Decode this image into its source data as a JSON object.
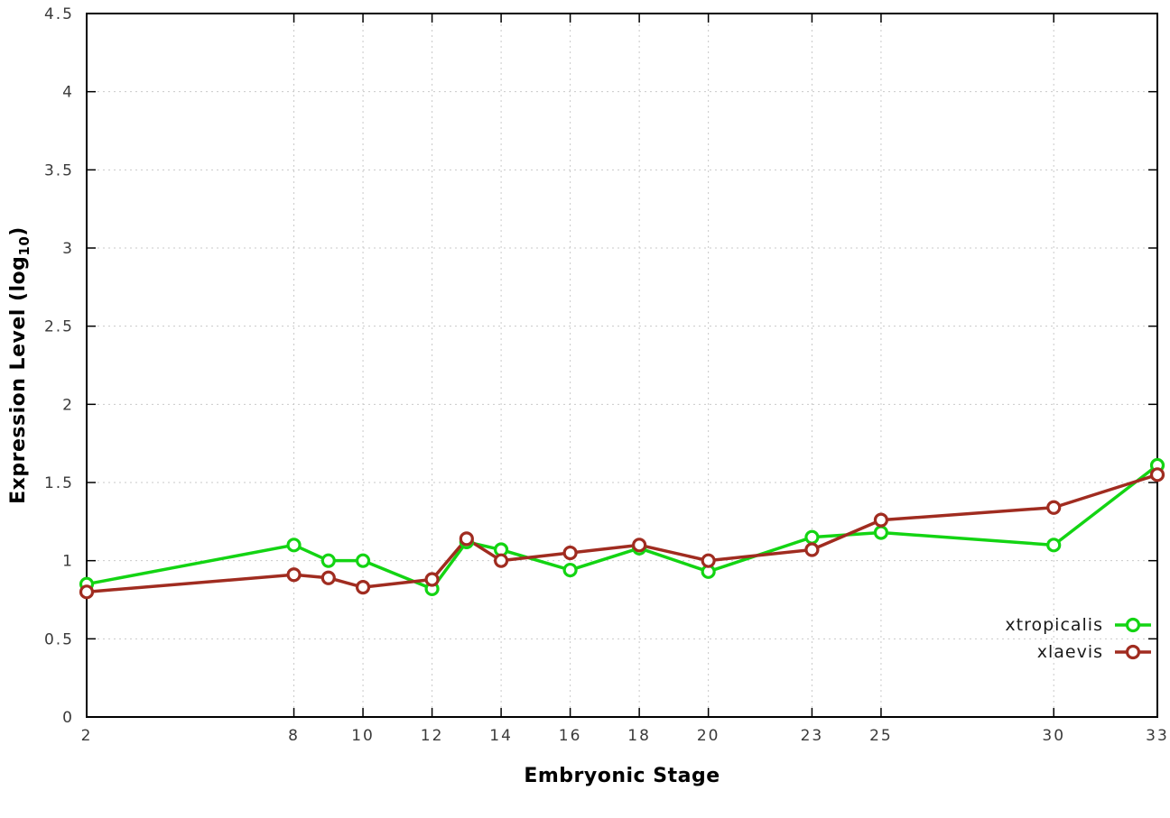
{
  "chart": {
    "ylabel_main": "Expression Level (log",
    "ylabel_sub": "10",
    "ylabel_close": ")",
    "xlabel": "Embryonic Stage"
  },
  "chart_data": {
    "type": "line",
    "title": "",
    "xlabel": "Embryonic Stage",
    "ylabel": "Expression Level (log10)",
    "x": [
      2,
      8,
      9,
      10,
      12,
      13,
      14,
      16,
      18,
      20,
      23,
      25,
      30,
      33
    ],
    "series": [
      {
        "name": "xtropicalis",
        "color": "#13d413",
        "values": [
          0.85,
          1.1,
          1.0,
          1.0,
          0.82,
          1.12,
          1.07,
          0.94,
          1.08,
          0.93,
          1.15,
          1.18,
          1.1,
          1.61
        ]
      },
      {
        "name": "xlaevis",
        "color": "#a02c20",
        "values": [
          0.8,
          0.91,
          0.89,
          0.83,
          0.88,
          1.14,
          1.0,
          1.05,
          1.1,
          1.0,
          1.07,
          1.26,
          1.34,
          1.55
        ]
      }
    ],
    "xlim": [
      2,
      33
    ],
    "ylim": [
      0,
      4.5
    ],
    "xticks": [
      2,
      8,
      10,
      12,
      14,
      16,
      18,
      20,
      23,
      25,
      30,
      33
    ],
    "yticks": [
      "0",
      "0.5",
      "1",
      "1.5",
      "2",
      "2.5",
      "3",
      "3.5",
      "4",
      "4.5"
    ],
    "grid": true,
    "grid_color": "#c9c9c9",
    "axis_color": "#000000",
    "tick_label_color": "#3a3a3a",
    "marker": "open-circle",
    "legend_position": "inside-bottom-right"
  }
}
